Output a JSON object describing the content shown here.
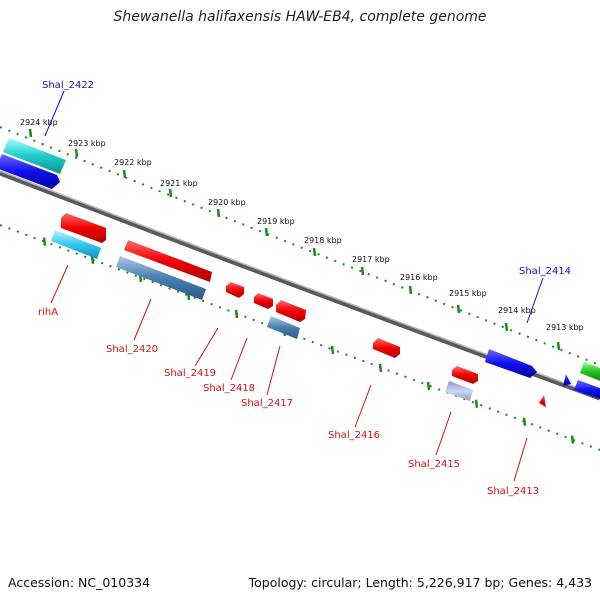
{
  "title": "Shewanella halifaxensis HAW-EB4, complete genome",
  "footer": {
    "accession": "Accession: NC_010334",
    "summary": "Topology: circular; Length: 5,226,917 bp; Genes: 4,433"
  },
  "colors": {
    "label_forward": "#1010c8",
    "label_reverse": "#d01010",
    "dots": "#1a8a1a",
    "backbone": "#8a8a8a"
  },
  "ticks": [
    "2924 kbp",
    "2923 kbp",
    "2922 kbp",
    "2921 kbp",
    "2920 kbp",
    "2919 kbp",
    "2918 kbp",
    "2917 kbp",
    "2916 kbp",
    "2915 kbp",
    "2914 kbp",
    "2913 kbp"
  ],
  "gene_labels": {
    "forward": [
      "Shal_2422",
      "Shal_2414"
    ],
    "reverse": [
      "rihA",
      "Shal_2420",
      "Shal_2419",
      "Shal_2418",
      "Shal_2417",
      "Shal_2416",
      "Shal_2415",
      "Shal_2413"
    ]
  }
}
